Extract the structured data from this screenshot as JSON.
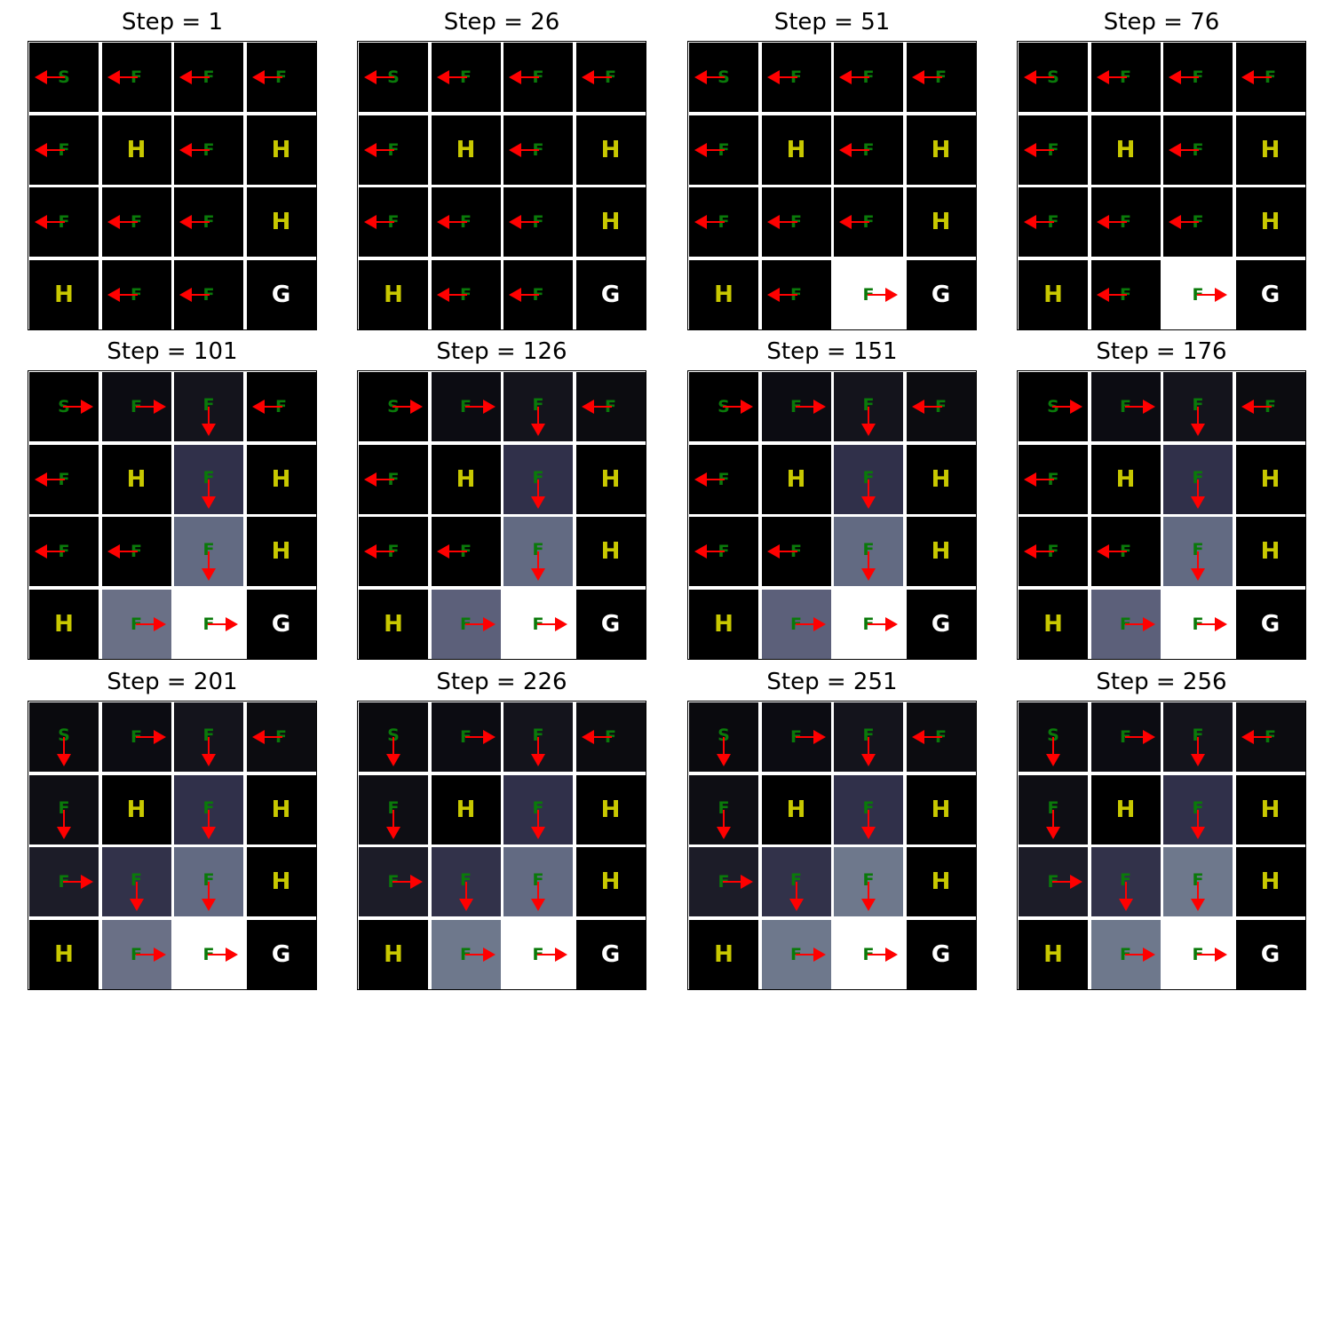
{
  "colors": {
    "hole_text": "#c8c800",
    "goal_text": "#ffffff",
    "frozen_text": "#0a7a0a",
    "arrow": "#ff0000",
    "grid_line": "#ffffff",
    "frame": "#000000"
  },
  "panels": [
    {
      "title": "Step = 1",
      "labels": [
        "S",
        "F",
        "F",
        "F",
        "F",
        "H",
        "F",
        "H",
        "F",
        "F",
        "F",
        "H",
        "H",
        "F",
        "F",
        "G"
      ],
      "actions": [
        "left",
        "left",
        "left",
        "left",
        "left",
        "",
        "left",
        "",
        "left",
        "left",
        "left",
        "",
        "",
        "left",
        "left",
        ""
      ],
      "shades": [
        "#000000",
        "#000000",
        "#000000",
        "#000000",
        "#000000",
        "#000000",
        "#000000",
        "#000000",
        "#000000",
        "#000000",
        "#000000",
        "#000000",
        "#000000",
        "#000000",
        "#000000",
        "#000000"
      ]
    },
    {
      "title": "Step = 26",
      "labels": [
        "S",
        "F",
        "F",
        "F",
        "F",
        "H",
        "F",
        "H",
        "F",
        "F",
        "F",
        "H",
        "H",
        "F",
        "F",
        "G"
      ],
      "actions": [
        "left",
        "left",
        "left",
        "left",
        "left",
        "",
        "left",
        "",
        "left",
        "left",
        "left",
        "",
        "",
        "left",
        "left",
        ""
      ],
      "shades": [
        "#000000",
        "#000000",
        "#000000",
        "#000000",
        "#000000",
        "#000000",
        "#000000",
        "#000000",
        "#000000",
        "#000000",
        "#000000",
        "#000000",
        "#000000",
        "#000000",
        "#000000",
        "#000000"
      ]
    },
    {
      "title": "Step = 51",
      "labels": [
        "S",
        "F",
        "F",
        "F",
        "F",
        "H",
        "F",
        "H",
        "F",
        "F",
        "F",
        "H",
        "H",
        "F",
        "F",
        "G"
      ],
      "actions": [
        "left",
        "left",
        "left",
        "left",
        "left",
        "",
        "left",
        "",
        "left",
        "left",
        "left",
        "",
        "",
        "left",
        "right",
        ""
      ],
      "shades": [
        "#000000",
        "#000000",
        "#000000",
        "#000000",
        "#000000",
        "#000000",
        "#000000",
        "#000000",
        "#000000",
        "#000000",
        "#000000",
        "#000000",
        "#000000",
        "#000000",
        "#ffffff",
        "#000000"
      ]
    },
    {
      "title": "Step = 76",
      "labels": [
        "S",
        "F",
        "F",
        "F",
        "F",
        "H",
        "F",
        "H",
        "F",
        "F",
        "F",
        "H",
        "H",
        "F",
        "F",
        "G"
      ],
      "actions": [
        "left",
        "left",
        "left",
        "left",
        "left",
        "",
        "left",
        "",
        "left",
        "left",
        "left",
        "",
        "",
        "left",
        "right",
        ""
      ],
      "shades": [
        "#000000",
        "#000000",
        "#000000",
        "#000000",
        "#000000",
        "#000000",
        "#000000",
        "#000000",
        "#000000",
        "#000000",
        "#000000",
        "#000000",
        "#000000",
        "#000000",
        "#ffffff",
        "#000000"
      ]
    },
    {
      "title": "Step = 101",
      "labels": [
        "S",
        "F",
        "F",
        "F",
        "F",
        "H",
        "F",
        "H",
        "F",
        "F",
        "F",
        "H",
        "H",
        "F",
        "F",
        "G"
      ],
      "actions": [
        "right",
        "right",
        "down",
        "left",
        "left",
        "",
        "down",
        "",
        "left",
        "left",
        "down",
        "",
        "",
        "right",
        "right",
        ""
      ],
      "shades": [
        "#000000",
        "#0c0c12",
        "#14141c",
        "#000000",
        "#000000",
        "#000000",
        "#30304a",
        "#000000",
        "#000000",
        "#000000",
        "#626a82",
        "#000000",
        "#000000",
        "#6a7086",
        "#ffffff",
        "#000000"
      ]
    },
    {
      "title": "Step = 126",
      "labels": [
        "S",
        "F",
        "F",
        "F",
        "F",
        "H",
        "F",
        "H",
        "F",
        "F",
        "F",
        "H",
        "H",
        "F",
        "F",
        "G"
      ],
      "actions": [
        "right",
        "right",
        "down",
        "left",
        "left",
        "",
        "down",
        "",
        "left",
        "left",
        "down",
        "",
        "",
        "right",
        "right",
        ""
      ],
      "shades": [
        "#000000",
        "#0c0c12",
        "#14141c",
        "#0c0c10",
        "#000000",
        "#000000",
        "#30304a",
        "#000000",
        "#000000",
        "#000000",
        "#626a82",
        "#000000",
        "#000000",
        "#5c607a",
        "#ffffff",
        "#000000"
      ]
    },
    {
      "title": "Step = 151",
      "labels": [
        "S",
        "F",
        "F",
        "F",
        "F",
        "H",
        "F",
        "H",
        "F",
        "F",
        "F",
        "H",
        "H",
        "F",
        "F",
        "G"
      ],
      "actions": [
        "right",
        "right",
        "down",
        "left",
        "left",
        "",
        "down",
        "",
        "left",
        "left",
        "down",
        "",
        "",
        "right",
        "right",
        ""
      ],
      "shades": [
        "#000000",
        "#0c0c12",
        "#14141c",
        "#0c0c10",
        "#000000",
        "#000000",
        "#30304a",
        "#000000",
        "#000000",
        "#000000",
        "#626a82",
        "#000000",
        "#000000",
        "#5c607a",
        "#ffffff",
        "#000000"
      ]
    },
    {
      "title": "Step = 176",
      "labels": [
        "S",
        "F",
        "F",
        "F",
        "F",
        "H",
        "F",
        "H",
        "F",
        "F",
        "F",
        "H",
        "H",
        "F",
        "F",
        "G"
      ],
      "actions": [
        "right",
        "right",
        "down",
        "left",
        "left",
        "",
        "down",
        "",
        "left",
        "left",
        "down",
        "",
        "",
        "right",
        "right",
        ""
      ],
      "shades": [
        "#000000",
        "#0c0c12",
        "#14141c",
        "#0c0c10",
        "#000000",
        "#000000",
        "#30304a",
        "#000000",
        "#000000",
        "#000000",
        "#626a82",
        "#000000",
        "#000000",
        "#5c607a",
        "#ffffff",
        "#000000"
      ]
    },
    {
      "title": "Step = 201",
      "labels": [
        "S",
        "F",
        "F",
        "F",
        "F",
        "H",
        "F",
        "H",
        "F",
        "F",
        "F",
        "H",
        "H",
        "F",
        "F",
        "G"
      ],
      "actions": [
        "down",
        "right",
        "down",
        "left",
        "down",
        "",
        "down",
        "",
        "right",
        "down",
        "down",
        "",
        "",
        "right",
        "right",
        ""
      ],
      "shades": [
        "#0a0a0e",
        "#0c0c12",
        "#14141c",
        "#0c0c10",
        "#0e0e14",
        "#000000",
        "#30304a",
        "#000000",
        "#1c1c28",
        "#32324a",
        "#626a82",
        "#000000",
        "#000000",
        "#6a7086",
        "#ffffff",
        "#000000"
      ]
    },
    {
      "title": "Step = 226",
      "labels": [
        "S",
        "F",
        "F",
        "F",
        "F",
        "H",
        "F",
        "H",
        "F",
        "F",
        "F",
        "H",
        "H",
        "F",
        "F",
        "G"
      ],
      "actions": [
        "down",
        "right",
        "down",
        "left",
        "down",
        "",
        "down",
        "",
        "right",
        "down",
        "down",
        "",
        "",
        "right",
        "right",
        ""
      ],
      "shades": [
        "#0a0a0e",
        "#0c0c12",
        "#14141c",
        "#0c0c10",
        "#0e0e14",
        "#000000",
        "#30304a",
        "#000000",
        "#1c1c28",
        "#32324a",
        "#626a82",
        "#000000",
        "#000000",
        "#6e788c",
        "#ffffff",
        "#000000"
      ]
    },
    {
      "title": "Step = 251",
      "labels": [
        "S",
        "F",
        "F",
        "F",
        "F",
        "H",
        "F",
        "H",
        "F",
        "F",
        "F",
        "H",
        "H",
        "F",
        "F",
        "G"
      ],
      "actions": [
        "down",
        "right",
        "down",
        "left",
        "down",
        "",
        "down",
        "",
        "right",
        "down",
        "down",
        "",
        "",
        "right",
        "right",
        ""
      ],
      "shades": [
        "#0a0a0e",
        "#0c0c12",
        "#14141c",
        "#0c0c10",
        "#0e0e14",
        "#000000",
        "#30304a",
        "#000000",
        "#1c1c28",
        "#32324a",
        "#6e788c",
        "#000000",
        "#000000",
        "#6e788c",
        "#ffffff",
        "#000000"
      ]
    },
    {
      "title": "Step = 256",
      "labels": [
        "S",
        "F",
        "F",
        "F",
        "F",
        "H",
        "F",
        "H",
        "F",
        "F",
        "F",
        "H",
        "H",
        "F",
        "F",
        "G"
      ],
      "actions": [
        "down",
        "right",
        "down",
        "left",
        "down",
        "",
        "down",
        "",
        "right",
        "down",
        "down",
        "",
        "",
        "right",
        "right",
        ""
      ],
      "shades": [
        "#0a0a0e",
        "#0c0c12",
        "#14141c",
        "#0c0c10",
        "#0e0e14",
        "#000000",
        "#30304a",
        "#000000",
        "#1c1c28",
        "#32324a",
        "#6e788c",
        "#000000",
        "#000000",
        "#6e788c",
        "#ffffff",
        "#000000"
      ]
    }
  ]
}
